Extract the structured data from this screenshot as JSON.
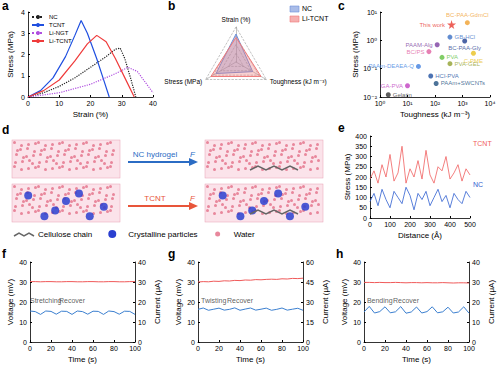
{
  "chart_data": [
    {
      "panel_label": "a",
      "type": "line",
      "x_label": "Strain (%)",
      "y_label": "Stress (MPa)",
      "xlim": [
        0,
        40
      ],
      "xticks": [
        0,
        10,
        20,
        30,
        40
      ],
      "ylim": [
        0,
        4
      ],
      "yticks": [
        0,
        1,
        2,
        3,
        4
      ],
      "grid": false,
      "legend": "upper left",
      "series": [
        {
          "name": "NC",
          "color": "#222222",
          "line_style": "dotted",
          "x": [
            0,
            5,
            10,
            15,
            20,
            25,
            28,
            29.5,
            31,
            33,
            34.5
          ],
          "values": [
            0,
            0.2,
            0.5,
            0.9,
            1.4,
            1.9,
            2.25,
            2.3,
            1.8,
            0.8,
            0
          ]
        },
        {
          "name": "TCNT",
          "color": "#1f4fe0",
          "line_style": "solid",
          "x": [
            0,
            4,
            8,
            12,
            15,
            17,
            19,
            22,
            24,
            26
          ],
          "values": [
            0,
            0.3,
            0.9,
            1.9,
            2.9,
            3.6,
            3.0,
            1.8,
            0.9,
            0
          ]
        },
        {
          "name": "Li-NGT",
          "color": "#b04fe0",
          "line_style": "dotted",
          "x": [
            0,
            10,
            20,
            28,
            32,
            35,
            38,
            40
          ],
          "values": [
            0,
            0.2,
            0.6,
            1.1,
            1.4,
            1.2,
            0.6,
            0.2
          ]
        },
        {
          "name": "Li-TCNT",
          "color": "#ef3b3b",
          "line_style": "solid",
          "x": [
            0,
            5,
            10,
            15,
            19,
            22,
            25,
            28,
            31,
            34
          ],
          "values": [
            0,
            0.3,
            0.8,
            1.7,
            2.5,
            2.9,
            2.6,
            1.8,
            0.9,
            0
          ]
        }
      ]
    },
    {
      "panel_label": "b",
      "type": "radar",
      "legend": "upper right",
      "tick_labels": false,
      "indicators": [
        {
          "name": "Strain (%)",
          "max": 40
        },
        {
          "name": "Stress (MPa)",
          "max": 3.5
        },
        {
          "name": "Toughness (kJ m⁻³)",
          "max": 400
        }
      ],
      "series": [
        {
          "name": "NC",
          "color": "#6f8fd8",
          "values": [
            32,
            2.3,
            220
          ]
        },
        {
          "name": "Li-TCNT",
          "color": "#f07a7a",
          "values": [
            28,
            2.9,
            330
          ]
        }
      ]
    },
    {
      "panel_label": "c",
      "type": "scatter",
      "log": true,
      "grid": false,
      "x_label": "Toughness (kJ m⁻³)",
      "y_label": "Stress (MPa)",
      "xlim": [
        1,
        10000
      ],
      "xticks": [
        {
          "value": 1,
          "label": "10⁰"
        },
        {
          "value": 10,
          "label": "10¹"
        },
        {
          "value": 100,
          "label": "10²"
        },
        {
          "value": 1000,
          "label": "10³"
        },
        {
          "value": 10000,
          "label": "10⁴"
        }
      ],
      "ylim": [
        0.01,
        10
      ],
      "yticks": [
        {
          "value": 0.01,
          "label": "10⁻²"
        },
        {
          "value": 0.1,
          "label": "10⁻¹"
        },
        {
          "value": 1,
          "label": "10⁰"
        },
        {
          "value": 10,
          "label": "10¹"
        }
      ],
      "series": [
        {
          "name": "This work",
          "color": "#e8392f",
          "marker": "star",
          "x": [
            400
          ],
          "values": [
            3.6
          ]
        },
        {
          "name": "BC-PAA-GdmCl",
          "color": "#f0a030",
          "marker": "circle",
          "x": [
            1500
          ],
          "values": [
            4.2
          ]
        },
        {
          "name": "GB-HCl",
          "color": "#3a6fc4",
          "marker": "circle",
          "x": [
            350
          ],
          "values": [
            1.3
          ]
        },
        {
          "name": "BC-PAA-Gly",
          "color": "#1f3f8f",
          "marker": "circle",
          "x": [
            1200
          ],
          "values": [
            0.95
          ]
        },
        {
          "name": "PAAM-Alg",
          "color": "#7b3fa0",
          "marker": "circle",
          "x": [
            120
          ],
          "values": [
            0.7
          ]
        },
        {
          "name": "C-PME",
          "color": "#e8c020",
          "marker": "circle",
          "x": [
            2500
          ],
          "values": [
            0.35
          ]
        },
        {
          "name": "BC/PS",
          "color": "#e060a0",
          "marker": "circle",
          "x": [
            60
          ],
          "values": [
            0.4
          ]
        },
        {
          "name": "PVA",
          "color": "#60c040",
          "marker": "circle",
          "x": [
            180
          ],
          "values": [
            0.25
          ]
        },
        {
          "name": "PVA-GEL",
          "color": "#90a030",
          "marker": "circle",
          "x": [
            350
          ],
          "values": [
            0.15
          ]
        },
        {
          "name": "PAAm-DEAEA-Q",
          "color": "#4080e0",
          "marker": "circle",
          "x": [
            25
          ],
          "values": [
            0.12
          ]
        },
        {
          "name": "HCl-PVA",
          "color": "#2050a0",
          "marker": "circle",
          "x": [
            70
          ],
          "values": [
            0.055
          ]
        },
        {
          "name": "PAAm+SWCNTs",
          "color": "#205080",
          "marker": "circle",
          "x": [
            110
          ],
          "values": [
            0.03
          ]
        },
        {
          "name": "GA-PVA",
          "color": "#c040c0",
          "marker": "circle",
          "x": [
            10
          ],
          "values": [
            0.025
          ]
        },
        {
          "name": "Gelatin",
          "color": "#333333",
          "marker": "circle",
          "x": [
            2
          ],
          "values": [
            0.012
          ]
        }
      ]
    },
    {
      "panel_label": "e",
      "type": "line",
      "x_label": "Distance (Å)",
      "y_label": "Stress (MPa)",
      "grid": false,
      "legend": "right",
      "xlim": [
        0,
        500
      ],
      "xticks": [
        0,
        100,
        200,
        300,
        400,
        500
      ],
      "ylim": [
        0,
        400
      ],
      "yticks": [
        0,
        50,
        100,
        150,
        200,
        250,
        300,
        350,
        400
      ],
      "x": [
        0,
        20,
        40,
        60,
        80,
        100,
        120,
        140,
        160,
        180,
        200,
        220,
        240,
        260,
        280,
        300,
        320,
        340,
        360,
        380,
        400,
        420,
        440,
        460,
        480,
        500
      ],
      "series": [
        {
          "name": "TCNT",
          "color": "#f06060",
          "values": [
            190,
            230,
            170,
            260,
            200,
            310,
            180,
            220,
            350,
            170,
            240,
            200,
            280,
            190,
            330,
            210,
            170,
            250,
            230,
            300,
            190,
            220,
            260,
            180,
            240,
            210
          ]
        },
        {
          "name": "NC",
          "color": "#3060d0",
          "values": [
            80,
            120,
            60,
            140,
            90,
            50,
            130,
            100,
            70,
            150,
            110,
            40,
            120,
            90,
            130,
            60,
            100,
            140,
            80,
            110,
            50,
            120,
            90,
            70,
            130,
            100
          ]
        }
      ]
    },
    {
      "panel_label": "f",
      "type": "line",
      "x_label": "Time (s)",
      "y_label": "Voltage (mV)",
      "y2_label": "Current (μA)",
      "grid": false,
      "xlim": [
        0,
        100
      ],
      "xticks": [
        0,
        20,
        40,
        60,
        80,
        100
      ],
      "ylim": [
        0,
        40
      ],
      "yticks": [
        0,
        10,
        20,
        30,
        40
      ],
      "y2lim": [
        0,
        40
      ],
      "y2ticks": [
        0,
        10,
        20,
        30,
        40
      ],
      "x": [
        0,
        5,
        10,
        15,
        20,
        25,
        30,
        35,
        40,
        45,
        50,
        55,
        60,
        65,
        70,
        75,
        80,
        85,
        90,
        95,
        100
      ],
      "series": [
        {
          "axis": "y",
          "color": "#f05a5a",
          "values": [
            30.2,
            30.2,
            30.1,
            30.2,
            30.2,
            30.1,
            30.1,
            30.2,
            30.2,
            30.1,
            30.1,
            30.2,
            30.2,
            30.1,
            30.1,
            30.2,
            30.2,
            30.1,
            30.1,
            30.2,
            30.2
          ]
        },
        {
          "axis": "y2",
          "color": "#3b7fd0",
          "values": [
            15.5,
            15.2,
            13.8,
            15.5,
            15.3,
            13.9,
            15.4,
            15.3,
            13.8,
            15.5,
            15.2,
            13.9,
            15.4,
            15.3,
            13.8,
            15.5,
            15.2,
            13.9,
            15.4,
            15.3,
            13.8
          ]
        }
      ],
      "annotations": [
        {
          "text": "Stretching",
          "x": 15,
          "y": 21
        },
        {
          "text": "Recover",
          "x": 40,
          "y": 21
        }
      ]
    },
    {
      "panel_label": "g",
      "type": "line",
      "x_label": "Time (s)",
      "y_label": "Voltage (mV)",
      "y2_label": "Current (μA)",
      "grid": false,
      "xlim": [
        0,
        100
      ],
      "xticks": [
        0,
        20,
        40,
        60,
        80,
        100
      ],
      "ylim": [
        0,
        40
      ],
      "yticks": [
        0,
        10,
        20,
        30,
        40
      ],
      "y2lim": [
        0,
        60
      ],
      "y2ticks": [
        0,
        15,
        30,
        45,
        60
      ],
      "x": [
        0,
        5,
        10,
        15,
        20,
        25,
        30,
        35,
        40,
        45,
        50,
        55,
        60,
        65,
        70,
        75,
        80,
        85,
        90,
        95,
        100
      ],
      "series": [
        {
          "axis": "y",
          "color": "#f05a5a",
          "values": [
            30.0,
            30.2,
            30.1,
            30.4,
            30.3,
            30.6,
            30.5,
            30.8,
            30.7,
            31.0,
            30.9,
            31.2,
            31.1,
            31.3,
            31.4,
            31.3,
            31.6,
            31.5,
            31.8,
            31.7,
            31.9
          ]
        },
        {
          "axis": "y2",
          "color": "#3b7fd0",
          "values": [
            24.5,
            25.5,
            23.8,
            24.6,
            25.4,
            23.9,
            24.5,
            25.6,
            23.8,
            24.7,
            25.5,
            23.9,
            24.6,
            25.4,
            23.8,
            24.5,
            25.5,
            23.9,
            24.6,
            25.3,
            23.8
          ]
        }
      ],
      "annotations": [
        {
          "text": "Twisting",
          "x": 15,
          "y": 21
        },
        {
          "text": "Recover",
          "x": 40,
          "y": 21
        }
      ]
    },
    {
      "panel_label": "h",
      "type": "line",
      "x_label": "Time (s)",
      "y_label": "Voltage (mV)",
      "y2_label": "Current (μA)",
      "grid": false,
      "xlim": [
        0,
        100
      ],
      "xticks": [
        0,
        20,
        40,
        60,
        80,
        100
      ],
      "ylim": [
        0,
        40
      ],
      "yticks": [
        0,
        10,
        20,
        30,
        40
      ],
      "y2lim": [
        0,
        40
      ],
      "y2ticks": [
        0,
        10,
        20,
        30,
        40
      ],
      "x": [
        0,
        5,
        10,
        15,
        20,
        25,
        30,
        35,
        40,
        45,
        50,
        55,
        60,
        65,
        70,
        75,
        80,
        85,
        90,
        95,
        100
      ],
      "series": [
        {
          "axis": "y",
          "color": "#f05a5a",
          "values": [
            29.8,
            29.8,
            29.7,
            29.8,
            29.7,
            29.7,
            29.8,
            29.7,
            29.6,
            29.7,
            29.7,
            29.6,
            29.7,
            29.6,
            29.6,
            29.7,
            29.6,
            29.5,
            29.6,
            29.6,
            29.5
          ]
        },
        {
          "axis": "y2",
          "color": "#3b7fd0",
          "values": [
            15.0,
            17.8,
            14.5,
            15.2,
            17.6,
            14.6,
            15.1,
            17.7,
            14.4,
            15.0,
            17.5,
            14.5,
            15.2,
            17.6,
            14.6,
            15.1,
            17.4,
            14.5,
            15.0,
            17.6,
            14.4
          ]
        }
      ],
      "annotations": [
        {
          "text": "Bending",
          "x": 15,
          "y": 21
        },
        {
          "text": "Recover",
          "x": 40,
          "y": 21
        }
      ]
    }
  ],
  "diagram": {
    "panel_label": "d",
    "rows": [
      {
        "arrow_label": "NC hydrogel",
        "force": "F",
        "color": "#2b6cc4",
        "particles": false
      },
      {
        "arrow_label": "TCNT",
        "force": "F",
        "color": "#e8553a",
        "particles": true
      }
    ],
    "legend": [
      {
        "label": "Cellulose chain"
      },
      {
        "label": "Crystalline particles"
      },
      {
        "label": "Water"
      }
    ]
  }
}
